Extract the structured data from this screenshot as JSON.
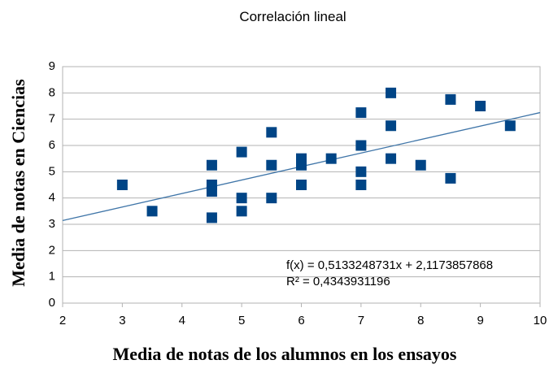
{
  "chart_data": {
    "type": "scatter",
    "title": "Correlación lineal",
    "x_label": "Media de notas de los alumnos en los ensayos",
    "y_label": "Media de notas en Ciencias",
    "series": [
      {
        "color": "#004586",
        "x": [
          3,
          3.5,
          4.5,
          4.5,
          4.5,
          4.5,
          5,
          5,
          5,
          5.5,
          5.5,
          5.5,
          6,
          6,
          6,
          6.5,
          7,
          7,
          7,
          7,
          7.5,
          7.5,
          7.5,
          8,
          8.5,
          8.5,
          9,
          9.5
        ],
        "values": [
          4.5,
          3.5,
          5.25,
          4.5,
          4.25,
          3.25,
          5.75,
          4,
          3.5,
          6.5,
          5.25,
          4,
          5.5,
          5.25,
          4.5,
          5.5,
          7.25,
          6,
          5,
          4.5,
          8,
          6.75,
          5.5,
          5.25,
          7.75,
          4.75,
          7.5,
          6.75
        ]
      }
    ],
    "trendline": {
      "color": "#3f75a8",
      "slope": 0.5133248731,
      "intercept": 2.1173857868,
      "annotations": [
        "f(x) = 0,5133248731x + 2,1173857868",
        "R² = 0,4343931196"
      ]
    },
    "xlim": [
      2,
      10
    ],
    "xticks": [
      2,
      3,
      4,
      5,
      6,
      7,
      8,
      9,
      10
    ],
    "ylim": [
      0,
      9
    ],
    "yticks": [
      0,
      1,
      2,
      3,
      4,
      5,
      6,
      7,
      8,
      9
    ],
    "grid": true
  }
}
